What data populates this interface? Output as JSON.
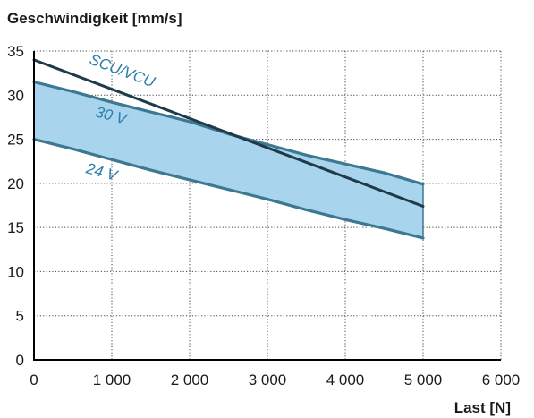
{
  "chart_data": {
    "type": "area",
    "title": "",
    "ylabel": "Geschwindigkeit [mm/s]",
    "xlabel": "Last [N]",
    "xlim": [
      0,
      6000
    ],
    "ylim": [
      0,
      35
    ],
    "x_ticks": [
      0,
      1000,
      2000,
      3000,
      4000,
      5000,
      6000
    ],
    "x_tick_labels": [
      "0",
      "1 000",
      "2 000",
      "3 000",
      "4 000",
      "5 000",
      "6 000"
    ],
    "y_ticks": [
      0,
      5,
      10,
      15,
      20,
      25,
      30,
      35
    ],
    "y_tick_labels": [
      "0",
      "5",
      "10",
      "15",
      "20",
      "25",
      "30",
      "35"
    ],
    "grid": true,
    "grid_style": "dotted",
    "band": {
      "fill_color": "#a8d4ee",
      "edge_color": "#3d7891",
      "upper": {
        "name": "30 V",
        "x": [
          0,
          500,
          1000,
          1500,
          2000,
          2500,
          3000,
          3500,
          4000,
          4500,
          5000
        ],
        "values": [
          31.5,
          30.4,
          29.2,
          28.1,
          27.0,
          25.6,
          24.4,
          23.2,
          22.2,
          21.2,
          19.9
        ]
      },
      "lower": {
        "name": "24 V",
        "x": [
          0,
          500,
          1000,
          1500,
          2000,
          2500,
          3000,
          3500,
          4000,
          4500,
          5000
        ],
        "values": [
          25.0,
          23.9,
          22.7,
          21.5,
          20.4,
          19.3,
          18.2,
          17.0,
          15.9,
          14.9,
          13.8
        ]
      }
    },
    "series": [
      {
        "name": "SCU/VCU",
        "color": "#1f3a48",
        "x": [
          0,
          5000
        ],
        "values": [
          34.0,
          17.4
        ]
      }
    ],
    "label_colors": {
      "band_labels": "#2a7da8",
      "series_label": "#2a7da8"
    }
  }
}
